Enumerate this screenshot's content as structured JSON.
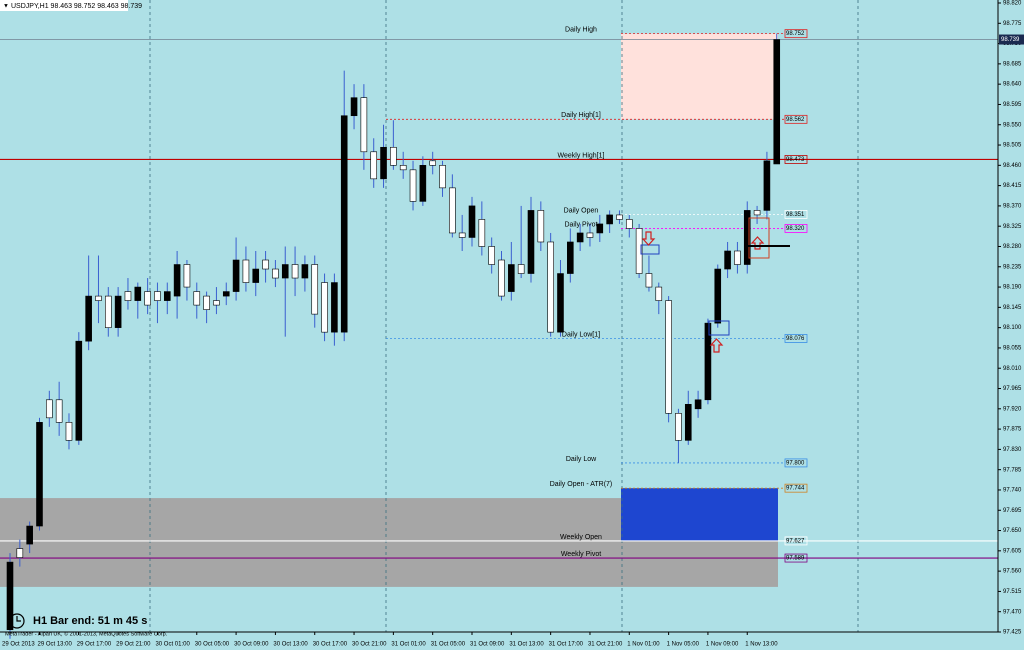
{
  "chart_data": {
    "type": "candlestick",
    "title": "USDJPY,H1 98.463 98.752 98.463 98.739",
    "timer": "H1 Bar end: 51 m 45 s",
    "footer": "MetaTrader - Alpari UK, © 2001-2013, MetaQuotes Software Corp.",
    "up_color": "#000000",
    "down_color": "#ffffff",
    "wick_color": "#3a5fd0",
    "categories": [
      "29 Oct 2013",
      null,
      null,
      "29 Oct 13:00",
      null,
      null,
      null,
      "29 Oct 17:00",
      null,
      null,
      null,
      "29 Oct 21:00",
      null,
      null,
      null,
      "30 Oct 01:00",
      null,
      null,
      null,
      "30 Oct 05:00",
      null,
      null,
      null,
      "30 Oct 09:00",
      null,
      null,
      null,
      "30 Oct 13:00",
      null,
      null,
      null,
      "30 Oct 17:00",
      null,
      null,
      null,
      "30 Oct 21:00",
      null,
      null,
      null,
      "31 Oct 01:00",
      null,
      null,
      null,
      "31 Oct 05:00",
      null,
      null,
      null,
      "31 Oct 09:00",
      null,
      null,
      null,
      "31 Oct 13:00",
      null,
      null,
      null,
      "31 Oct 17:00",
      null,
      null,
      null,
      "31 Oct 21:00",
      null,
      null,
      null,
      "1 Nov 01:00",
      null,
      null,
      null,
      "1 Nov 05:00",
      null,
      null,
      null,
      "1 Nov 09:00",
      null,
      null,
      null,
      "1 Nov 13:00",
      null,
      null,
      null
    ],
    "open": [
      97.43,
      97.61,
      97.62,
      97.66,
      97.94,
      97.94,
      97.89,
      97.85,
      98.07,
      98.17,
      98.17,
      98.1,
      98.18,
      98.16,
      98.18,
      98.18,
      98.16,
      98.17,
      98.24,
      98.18,
      98.17,
      98.16,
      98.17,
      98.18,
      98.25,
      98.2,
      98.25,
      98.23,
      98.21,
      98.24,
      98.21,
      98.24,
      98.2,
      98.09,
      98.09,
      98.57,
      98.61,
      98.49,
      98.43,
      98.5,
      98.46,
      98.45,
      98.38,
      98.47,
      98.46,
      98.41,
      98.31,
      98.3,
      98.34,
      98.28,
      98.25,
      98.18,
      98.24,
      98.22,
      98.36,
      98.29,
      98.09,
      98.22,
      98.29,
      98.31,
      98.31,
      98.33,
      98.35,
      98.34,
      98.32,
      98.22,
      98.19,
      98.16,
      97.91,
      97.85,
      97.92,
      97.94,
      98.11,
      98.23,
      98.27,
      98.24,
      98.36,
      98.36,
      98.463
    ],
    "high": [
      97.6,
      97.63,
      97.67,
      97.9,
      97.96,
      97.98,
      97.91,
      98.09,
      98.26,
      98.26,
      98.19,
      98.19,
      98.21,
      98.2,
      98.21,
      98.2,
      98.2,
      98.27,
      98.25,
      98.2,
      98.18,
      98.19,
      98.2,
      98.3,
      98.28,
      98.27,
      98.27,
      98.25,
      98.28,
      98.28,
      98.26,
      98.26,
      98.22,
      98.22,
      98.67,
      98.64,
      98.64,
      98.52,
      98.55,
      98.56,
      98.49,
      98.47,
      98.48,
      98.49,
      98.47,
      98.44,
      98.35,
      98.39,
      98.38,
      98.3,
      98.27,
      98.29,
      98.37,
      98.39,
      98.38,
      98.31,
      98.25,
      98.32,
      98.33,
      98.33,
      98.35,
      98.36,
      98.36,
      98.35,
      98.33,
      98.26,
      98.2,
      98.17,
      97.92,
      97.96,
      97.96,
      98.12,
      98.24,
      98.29,
      98.29,
      98.38,
      98.37,
      98.49,
      98.752
    ],
    "low": [
      97.41,
      97.57,
      97.6,
      97.65,
      97.88,
      97.86,
      97.83,
      97.84,
      98.05,
      98.11,
      98.08,
      98.08,
      98.14,
      98.12,
      98.13,
      98.11,
      98.13,
      98.12,
      98.16,
      98.12,
      98.11,
      98.13,
      98.15,
      98.16,
      98.18,
      98.17,
      98.2,
      98.19,
      98.08,
      98.17,
      98.18,
      98.1,
      98.07,
      98.06,
      98.07,
      98.54,
      98.45,
      98.41,
      98.41,
      98.45,
      98.43,
      98.36,
      98.37,
      98.44,
      98.39,
      98.3,
      98.27,
      98.28,
      98.26,
      98.22,
      98.16,
      98.16,
      98.21,
      98.2,
      98.27,
      98.08,
      98.08,
      98.2,
      98.27,
      98.28,
      98.29,
      98.31,
      98.33,
      98.3,
      98.21,
      98.18,
      98.13,
      97.89,
      97.8,
      97.84,
      97.9,
      97.93,
      98.1,
      98.21,
      98.22,
      98.22,
      98.33,
      98.34,
      98.463
    ],
    "close": [
      97.58,
      97.59,
      97.66,
      97.89,
      97.9,
      97.89,
      97.85,
      98.07,
      98.17,
      98.16,
      98.1,
      98.17,
      98.16,
      98.19,
      98.15,
      98.16,
      98.18,
      98.24,
      98.19,
      98.15,
      98.14,
      98.15,
      98.18,
      98.25,
      98.2,
      98.23,
      98.23,
      98.21,
      98.24,
      98.21,
      98.24,
      98.13,
      98.09,
      98.2,
      98.57,
      98.61,
      98.49,
      98.43,
      98.5,
      98.46,
      98.45,
      98.38,
      98.46,
      98.46,
      98.41,
      98.31,
      98.3,
      98.37,
      98.28,
      98.24,
      98.17,
      98.24,
      98.22,
      98.36,
      98.29,
      98.09,
      98.22,
      98.29,
      98.31,
      98.3,
      98.33,
      98.35,
      98.34,
      98.32,
      98.22,
      98.19,
      98.16,
      97.91,
      97.85,
      97.93,
      97.94,
      98.11,
      98.23,
      98.27,
      98.24,
      98.36,
      98.35,
      98.47,
      98.739
    ],
    "ylim": [
      97.425,
      98.82
    ],
    "yticks": [
      97.425,
      {
        "value": 97.47,
        "label": "97.470"
      },
      97.515,
      {
        "value": 97.56,
        "label": "97.560"
      },
      97.605,
      {
        "value": 97.65,
        "label": "97.650"
      },
      97.695,
      {
        "value": 97.74,
        "label": "97.740"
      },
      97.785,
      {
        "value": 97.83,
        "label": "97.830"
      },
      97.875,
      {
        "value": 97.92,
        "label": "97.920"
      },
      97.965,
      {
        "value": 98.01,
        "label": "98.010"
      },
      98.055,
      {
        "value": 98.1,
        "label": "98.100"
      },
      98.145,
      {
        "value": 98.19,
        "label": "98.190"
      },
      98.235,
      {
        "value": 98.28,
        "label": "98.280"
      },
      98.325,
      {
        "value": 98.37,
        "label": "98.370"
      },
      98.415,
      {
        "value": 98.46,
        "label": "98.460"
      },
      98.505,
      {
        "value": 98.55,
        "label": "98.550"
      },
      98.595,
      {
        "value": 98.64,
        "label": "98.640"
      },
      98.685,
      {
        "value": 98.73,
        "label": "98.730"
      },
      98.775,
      {
        "value": 98.82,
        "label": "98.820"
      }
    ],
    "last_price": 98.739,
    "zones": [
      {
        "from": 97.525,
        "to": 97.722,
        "color": "#a6a6a6"
      },
      {
        "from": 98.562,
        "to": 98.752,
        "color": "#ffe1dc"
      },
      {
        "from": 97.627,
        "to": 97.744,
        "color": "#1e46d0"
      }
    ],
    "levels": [
      {
        "name": "Daily High",
        "value": 98.752,
        "color": "#e02020"
      },
      {
        "name": "Daily High[1]",
        "value": 98.562,
        "color": "#e02020"
      },
      {
        "name": "Weekly High[1]",
        "value": 98.473,
        "color": "#c00000"
      },
      {
        "name": "Daily Open",
        "value": 98.351,
        "color": "#ffffff"
      },
      {
        "name": "Daily Pivot",
        "value": {
          "value": 98.32,
          "label": "98.320"
        },
        "color": "#ff00ff"
      },
      {
        "name": "Daily Low[1]",
        "value": 98.076,
        "color": "#3a8ee6"
      },
      {
        "name": "Daily Low",
        "value": {
          "value": 97.8,
          "label": "97.800"
        },
        "color": "#3a8ee6"
      },
      {
        "name": "Daily Open - ATR(7)",
        "value": 97.744,
        "color": "#d08020"
      },
      {
        "name": "Weekly Open",
        "value": 97.627,
        "color": "#ffffff"
      },
      {
        "name": "Weekly Pivot",
        "value": 97.589,
        "color": "#800080"
      }
    ]
  }
}
